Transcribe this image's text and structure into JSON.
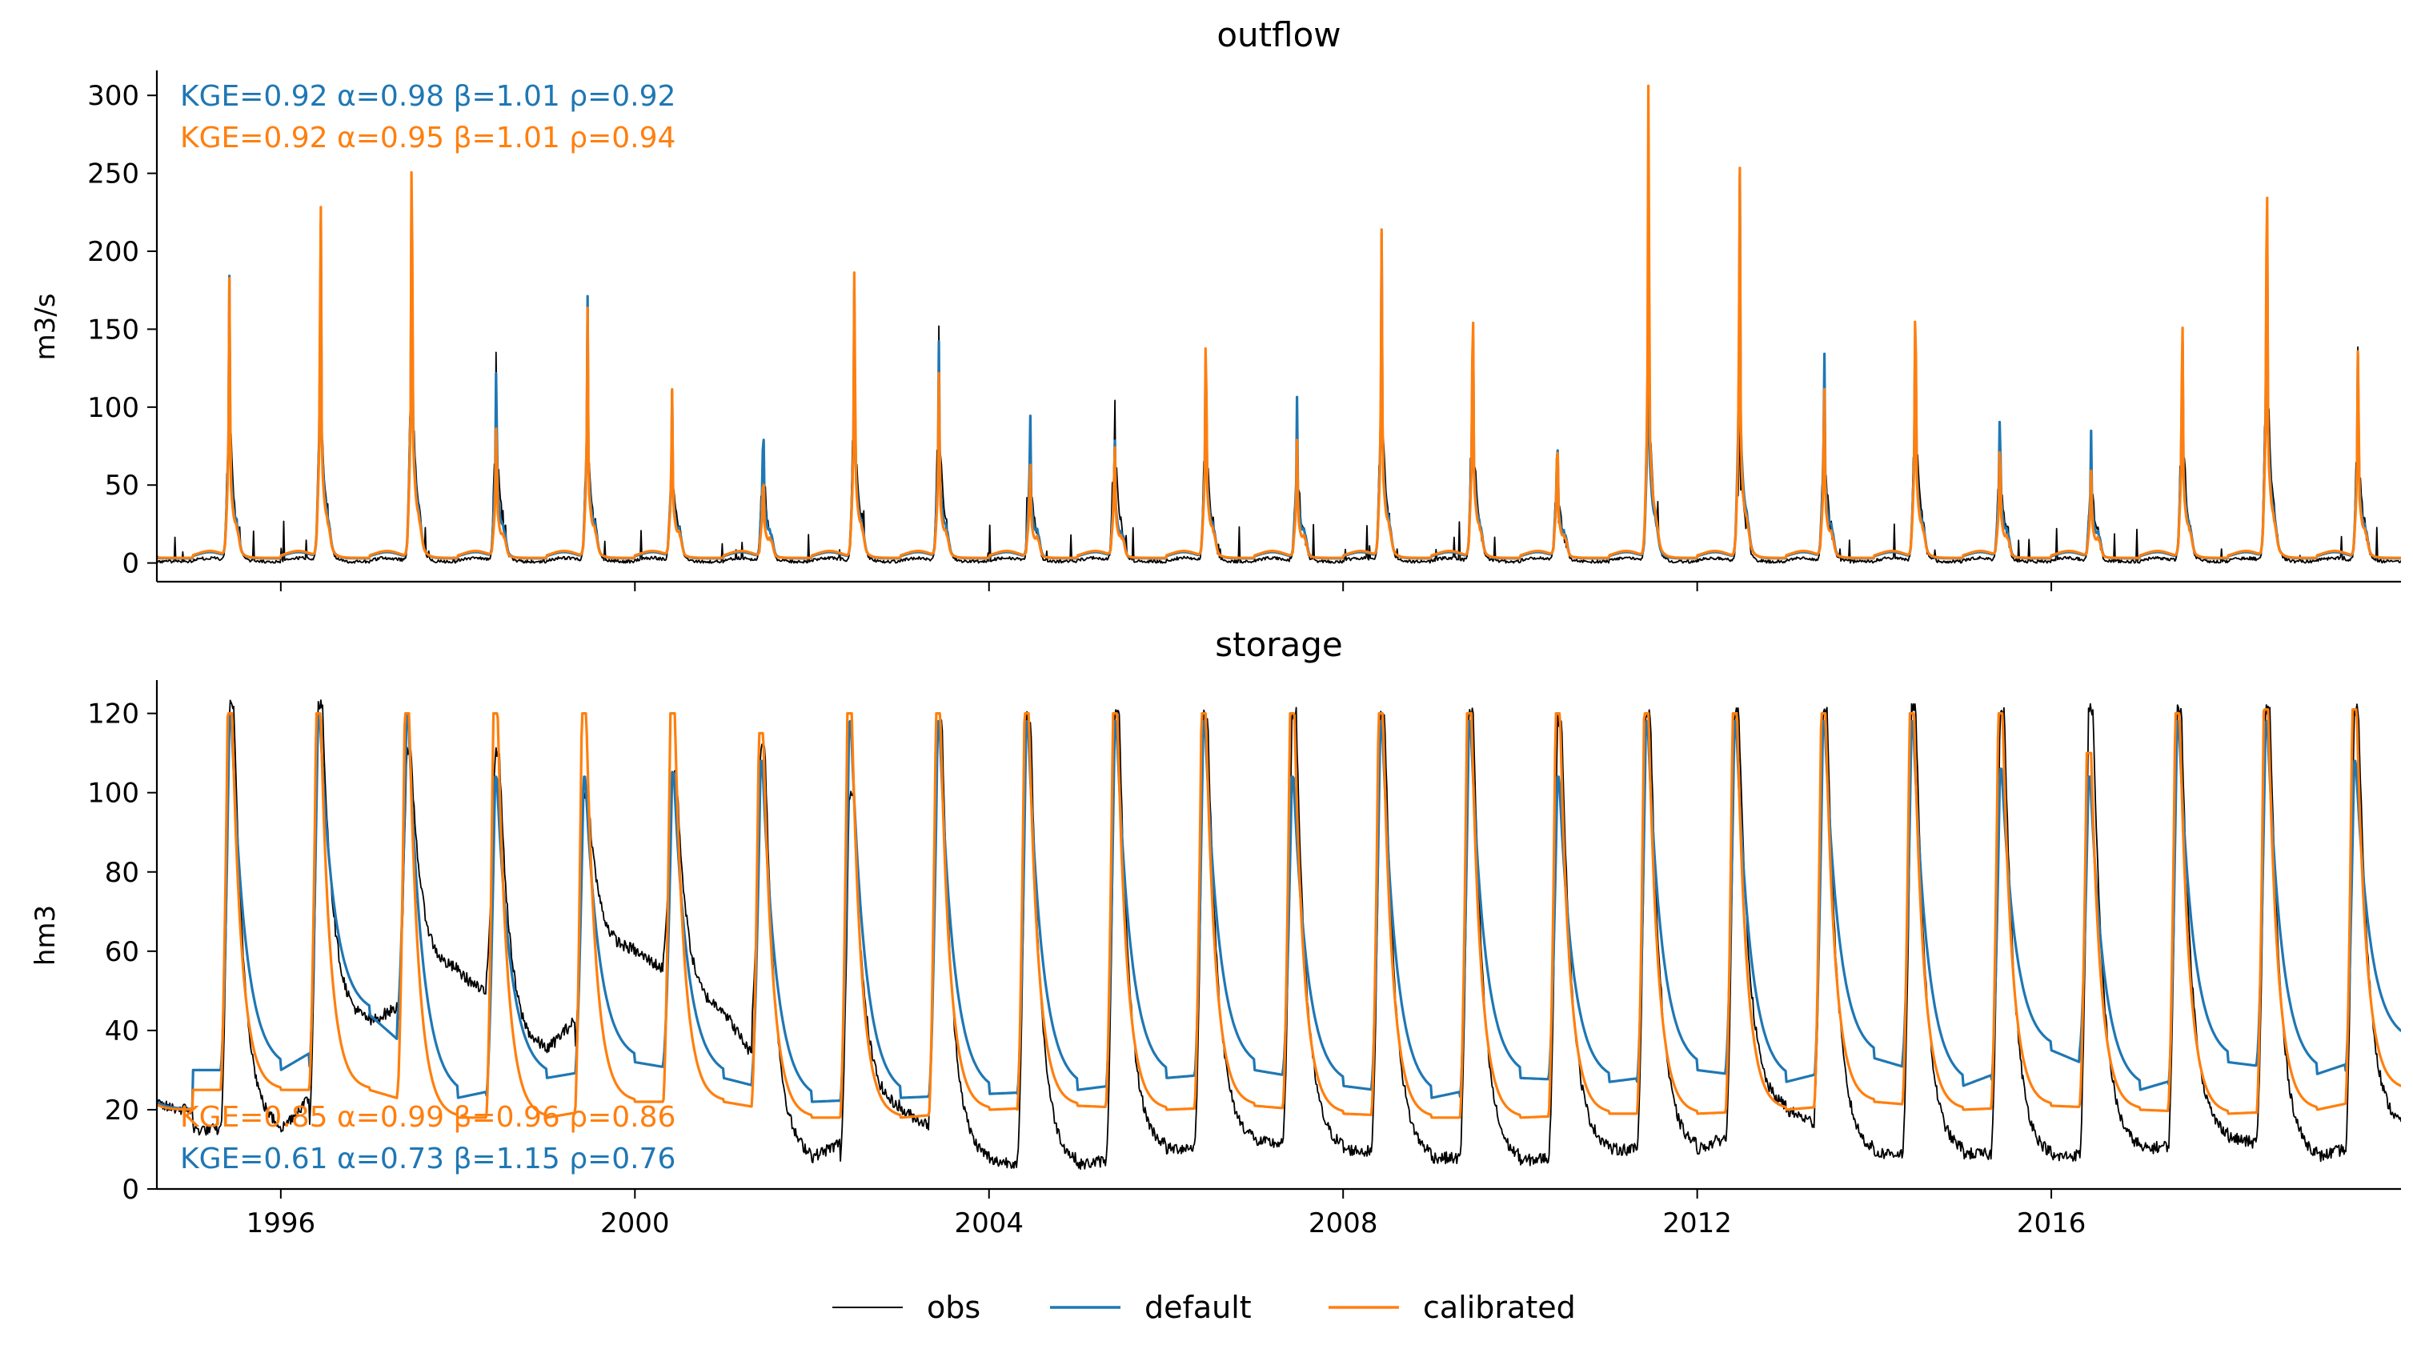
{
  "colors": {
    "obs": "#000000",
    "default": "#1f77b4",
    "calibrated": "#ff7f0e"
  },
  "legend": [
    {
      "key": "obs",
      "label": "obs"
    },
    {
      "key": "default",
      "label": "default"
    },
    {
      "key": "calibrated",
      "label": "calibrated"
    }
  ],
  "chart_data": [
    {
      "id": "outflow",
      "type": "line",
      "title": "outflow",
      "ylabel": "m3/s",
      "xlim": [
        1994.6,
        2019.95
      ],
      "ylim": [
        -12,
        315
      ],
      "xticks": [
        1996,
        2000,
        2004,
        2008,
        2012,
        2016
      ],
      "xtick_labels": [],
      "yticks": [
        0,
        50,
        100,
        150,
        200,
        250,
        300
      ],
      "metrics": [
        {
          "series": "default",
          "text": "KGE=0.92  α=0.98  β=1.01  ρ=0.92"
        },
        {
          "series": "calibrated",
          "text": "KGE=0.92  α=0.95  β=1.01  ρ=0.94"
        }
      ],
      "yearly_peaks_approx": {
        "years": [
          1995,
          1996,
          1997,
          1998,
          1999,
          2000,
          2001,
          2002,
          2003,
          2004,
          2005,
          2006,
          2007,
          2008,
          2009,
          2010,
          2011,
          2012,
          2013,
          2014,
          2015,
          2016,
          2017,
          2018,
          2019
        ],
        "obs": [
          180,
          210,
          245,
          155,
          153,
          93,
          80,
          175,
          155,
          80,
          115,
          140,
          85,
          185,
          160,
          72,
          210,
          122,
          120,
          165,
          85,
          63,
          150,
          257,
          130
        ],
        "default": [
          165,
          225,
          260,
          120,
          150,
          90,
          82,
          165,
          125,
          80,
          65,
          135,
          85,
          190,
          160,
          72,
          190,
          240,
          123,
          160,
          87,
          63,
          150,
          250,
          125
        ],
        "calibrated": [
          165,
          228,
          270,
          75,
          145,
          93,
          40,
          175,
          105,
          47,
          60,
          138,
          60,
          195,
          162,
          65,
          300,
          243,
          98,
          165,
          60,
          40,
          152,
          257,
          125
        ]
      }
    },
    {
      "id": "storage",
      "type": "line",
      "title": "storage",
      "ylabel": "hm3",
      "xlim": [
        1994.6,
        2019.95
      ],
      "ylim": [
        0,
        128
      ],
      "xticks": [
        1996,
        2000,
        2004,
        2008,
        2012,
        2016
      ],
      "xtick_labels": [
        "1996",
        "2000",
        "2004",
        "2008",
        "2012",
        "2016"
      ],
      "yticks": [
        0,
        20,
        40,
        60,
        80,
        100,
        120
      ],
      "metrics": [
        {
          "series": "calibrated",
          "text": "KGE=0.85  α=0.99  β=0.96  ρ=0.86"
        },
        {
          "series": "default",
          "text": "KGE=0.61  α=0.73  β=1.15  ρ=0.76"
        }
      ],
      "yearly_profile_approx": {
        "years": [
          1995,
          1996,
          1997,
          1998,
          1999,
          2000,
          2001,
          2002,
          2003,
          2004,
          2005,
          2006,
          2007,
          2008,
          2009,
          2010,
          2011,
          2012,
          2013,
          2014,
          2015,
          2016,
          2017,
          2018,
          2019
        ],
        "obs_peak": [
          122,
          122,
          110,
          110,
          100,
          105,
          112,
          100,
          117,
          119,
          120,
          120,
          120,
          120,
          120,
          118,
          120,
          120,
          120,
          121,
          120,
          121,
          121,
          121,
          121
        ],
        "obs_min": [
          15,
          42,
          55,
          35,
          60,
          45,
          8,
          20,
          7,
          6,
          10,
          12,
          10,
          8,
          7,
          10,
          10,
          20,
          9,
          9,
          8,
          10,
          13,
          8,
          15
        ],
        "default_peak": [
          120,
          120,
          120,
          104,
          104,
          105,
          108,
          118,
          118,
          118,
          118,
          118,
          104,
          118,
          118,
          104,
          118,
          118,
          118,
          118,
          106,
          104,
          118,
          118,
          108
        ],
        "default_min": [
          30,
          44,
          23,
          28,
          32,
          28,
          22,
          23,
          24,
          25,
          28,
          30,
          26,
          23,
          28,
          27,
          30,
          27,
          33,
          26,
          35,
          25,
          32,
          29,
          37
        ],
        "calibrated_peak": [
          120,
          120,
          120,
          120,
          120,
          120,
          115,
          120,
          120,
          120,
          120,
          120,
          120,
          120,
          120,
          120,
          120,
          120,
          120,
          120,
          120,
          110,
          120,
          121,
          121
        ],
        "calibrated_min": [
          25,
          25,
          18,
          18,
          22,
          22,
          18,
          18,
          20,
          21,
          20,
          21,
          19,
          18,
          18,
          19,
          19,
          20,
          22,
          20,
          21,
          20,
          19,
          20,
          25
        ]
      }
    }
  ]
}
